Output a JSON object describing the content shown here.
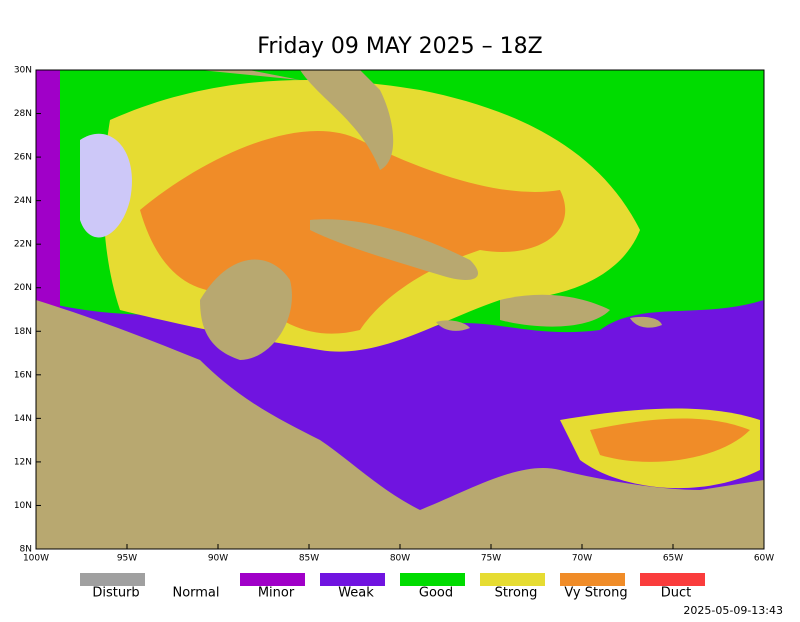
{
  "title": "Friday 09 MAY 2025 – 18Z",
  "latitude_labels": [
    "30N",
    "28N",
    "26N",
    "24N",
    "22N",
    "20N",
    "18N",
    "16N",
    "14N",
    "12N",
    "10N",
    "8N"
  ],
  "longitude_labels": [
    "100W",
    "95W",
    "90W",
    "85W",
    "80W",
    "75W",
    "70W",
    "65W",
    "60W"
  ],
  "legend": [
    {
      "label": "Disturb",
      "color": "#a0a0a0"
    },
    {
      "label": "Normal"
    },
    {
      "label": "Minor",
      "color": "#a000c8"
    },
    {
      "label": "Weak",
      "color": "#7014e0"
    },
    {
      "label": "Good",
      "color": "#00dc00"
    },
    {
      "label": "Strong",
      "color": "#e6dc32"
    },
    {
      "label": "Vy Strong",
      "color": "#f08c28"
    },
    {
      "label": "Duct",
      "color": "#fa3c3c"
    }
  ],
  "timestamp": "2025-05-09-13:43"
}
